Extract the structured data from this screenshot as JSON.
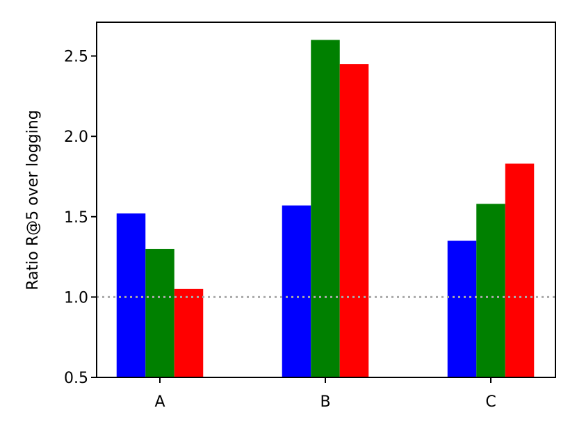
{
  "chart_data": {
    "type": "bar",
    "categories": [
      "A",
      "B",
      "C"
    ],
    "series": [
      {
        "color": "#0000ff",
        "values": [
          1.52,
          1.57,
          1.35
        ]
      },
      {
        "color": "#008000",
        "values": [
          1.3,
          2.6,
          1.58
        ]
      },
      {
        "color": "#ff0000",
        "values": [
          1.05,
          2.45,
          1.83
        ]
      }
    ],
    "ylabel": "Ratio R@5 over logging",
    "ylim": [
      0.5,
      2.71
    ],
    "yticks": [
      0.5,
      1.0,
      1.5,
      2.0,
      2.5
    ],
    "ytick_labels": [
      "0.5",
      "1.0",
      "1.5",
      "2.0",
      "2.5"
    ],
    "reference_line": {
      "y": 1.0,
      "style": "dotted",
      "color": "#aaaaaa"
    },
    "grid": false,
    "legend": false
  }
}
